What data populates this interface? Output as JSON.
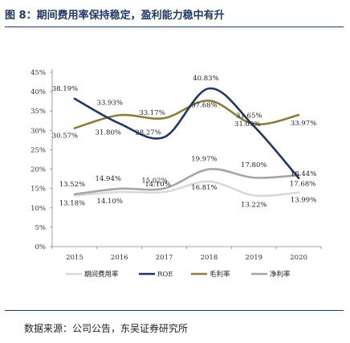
{
  "figure": {
    "title": "图 8：期间费用率保持稳定，盈利能力稳中有升",
    "source": "数据来源：公司公告，东吴证券研究所"
  },
  "chart_data": {
    "type": "line",
    "x": [
      "2015",
      "2016",
      "2017",
      "2018",
      "2019",
      "2020"
    ],
    "ylim": [
      0,
      45
    ],
    "yticks": [
      "0%",
      "5%",
      "10%",
      "15%",
      "20%",
      "25%",
      "30%",
      "35%",
      "40%",
      "45%"
    ],
    "grid": false,
    "legend_position": "bottom",
    "series": [
      {
        "name": "期间费用率",
        "color": "#d9d9d9",
        "values": [
          13.18,
          14.1,
          14.1,
          16.81,
          13.22,
          13.99
        ],
        "labels": [
          "13.18%",
          "14.10%",
          "14.10%",
          "16.81%",
          "13.22%",
          "13.99%"
        ]
      },
      {
        "name": "ROE",
        "color": "#1f3864",
        "values": [
          38.19,
          31.8,
          28.27,
          40.83,
          31.09,
          17.68
        ],
        "labels": [
          "38.19%",
          "31.80%",
          "28.27%",
          "40.83%",
          "31.09%",
          "17.68%"
        ]
      },
      {
        "name": "毛利率",
        "color": "#8b7d3c",
        "values": [
          30.57,
          33.93,
          33.17,
          37.68,
          31.65,
          33.97
        ],
        "labels": [
          "30.57%",
          "33.93%",
          "33.17%",
          "37.68%",
          "31.65%",
          "33.97%"
        ]
      },
      {
        "name": "净利率",
        "color": "#a6a6a6",
        "values": [
          13.52,
          14.94,
          15.02,
          19.97,
          17.8,
          18.44
        ],
        "labels": [
          "13.52%",
          "14.94%",
          "15.02%",
          "19.97%",
          "17.80%",
          "18.44%"
        ]
      }
    ]
  }
}
